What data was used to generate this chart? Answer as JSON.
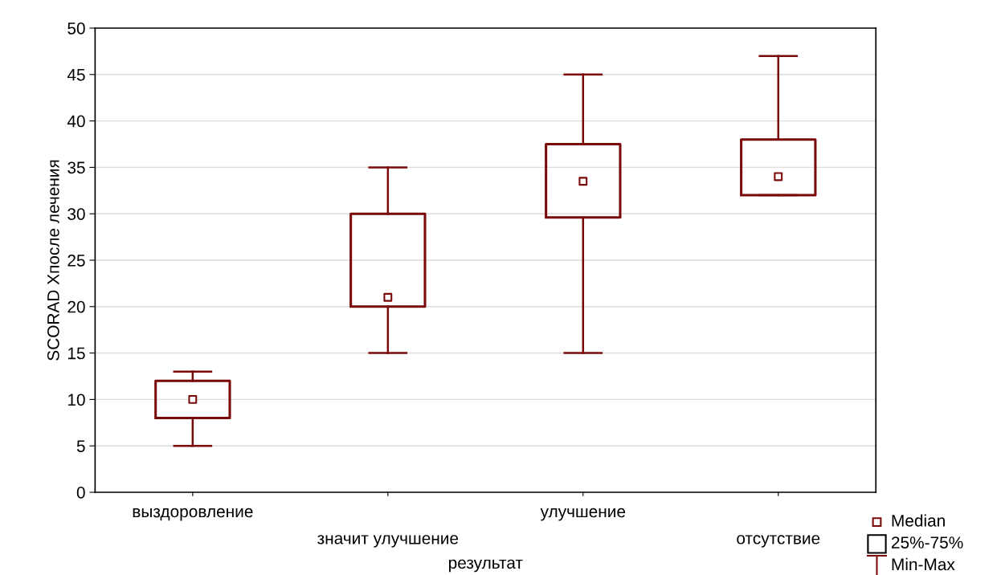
{
  "chart_data": {
    "type": "box",
    "xlabel": "результат",
    "ylabel": "SCORAD Xпосле лечения",
    "categories": [
      "выздоровление",
      "значит улучшение",
      "улучшение",
      "отсутствие"
    ],
    "boxes": [
      {
        "low": 5,
        "q1": 8,
        "median": 10,
        "q3": 12,
        "high": 13
      },
      {
        "low": 15,
        "q1": 20,
        "median": 21,
        "q3": 30,
        "high": 35
      },
      {
        "low": 15,
        "q1": 29.6,
        "median": 33.5,
        "q3": 37.5,
        "high": 45
      },
      {
        "low": 32,
        "q1": 32,
        "median": 34,
        "q3": 38,
        "high": 47
      }
    ],
    "color": "#7a0a0a",
    "ylim": [
      0,
      50
    ],
    "yticks": [
      0,
      5,
      10,
      15,
      20,
      25,
      30,
      35,
      40,
      45,
      50
    ],
    "grid": "y",
    "annotations": [
      "Median",
      "25%-75%",
      "Min-Max"
    ]
  }
}
